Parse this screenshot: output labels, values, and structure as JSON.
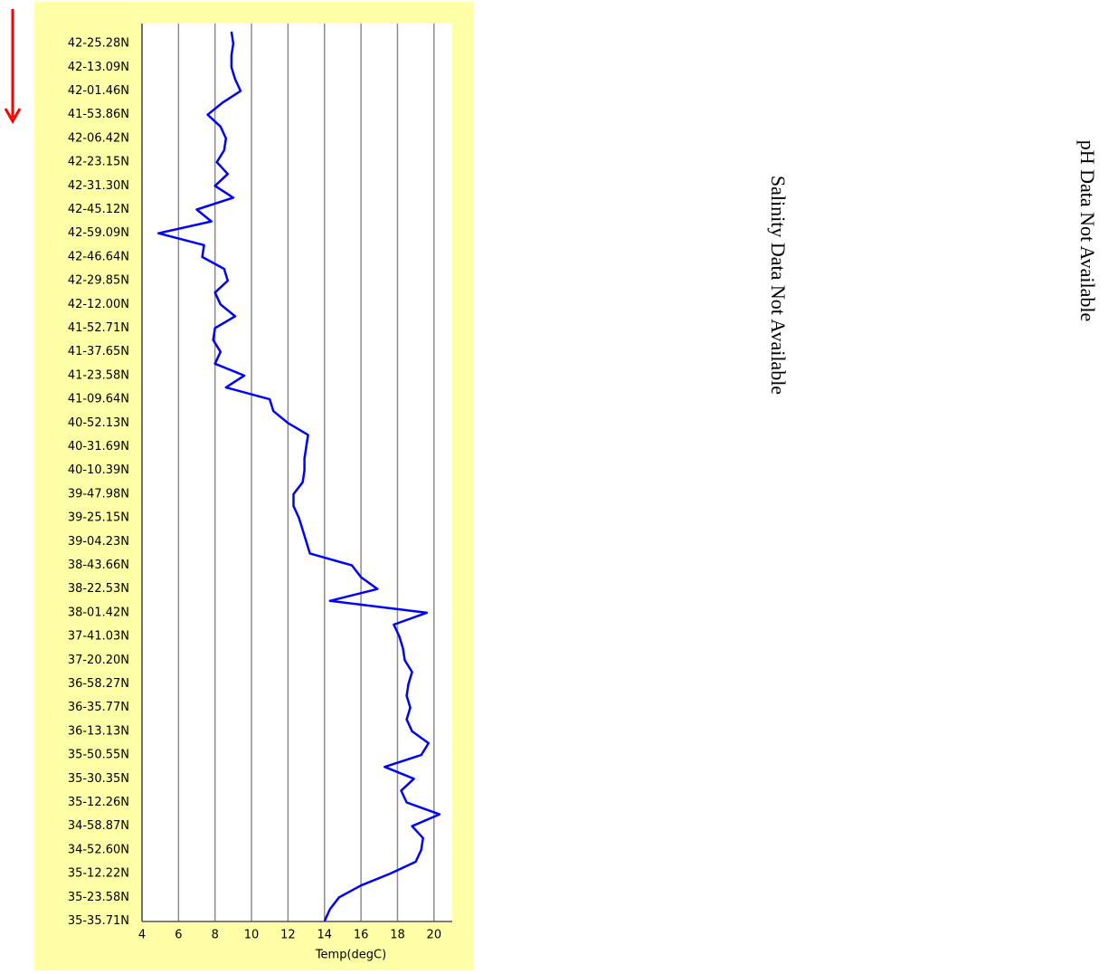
{
  "chart_data": {
    "type": "line",
    "orientation": "horizontal",
    "xlabel": "Temp(degC)",
    "xlim": [
      4,
      21
    ],
    "xticks": [
      4,
      6,
      8,
      10,
      12,
      14,
      16,
      18,
      20
    ],
    "grid": true,
    "color": "#0000ff",
    "categories": [
      null,
      "42-25.28N",
      null,
      "42-13.09N",
      null,
      "42-01.46N",
      null,
      "41-53.86N",
      null,
      "42-06.42N",
      null,
      "42-23.15N",
      null,
      "42-31.30N",
      null,
      "42-45.12N",
      null,
      "42-59.09N",
      null,
      "42-46.64N",
      null,
      "42-29.85N",
      null,
      "42-12.00N",
      null,
      "41-52.71N",
      null,
      "41-37.65N",
      null,
      "41-23.58N",
      null,
      "41-09.64N",
      null,
      "40-52.13N",
      null,
      "40-31.69N",
      null,
      "40-10.39N",
      null,
      "39-47.98N",
      null,
      "39-25.15N",
      null,
      "39-04.23N",
      null,
      "38-43.66N",
      null,
      "38-22.53N",
      null,
      "38-01.42N",
      null,
      "37-41.03N",
      null,
      "37-20.20N",
      null,
      "36-58.27N",
      null,
      "36-35.77N",
      null,
      "36-13.13N",
      null,
      "35-50.55N",
      null,
      "35-30.35N",
      null,
      "35-12.26N",
      null,
      "34-58.87N",
      null,
      "34-52.60N",
      null,
      "35-12.22N",
      null,
      "35-23.58N",
      null,
      "35-35.71N"
    ],
    "values": [
      8.9,
      9.0,
      8.9,
      8.9,
      9.1,
      9.4,
      8.4,
      7.6,
      8.3,
      8.6,
      8.5,
      8.1,
      8.7,
      8.0,
      9.0,
      7.0,
      7.8,
      4.9,
      7.4,
      7.3,
      8.5,
      8.7,
      8.0,
      8.3,
      9.1,
      8.0,
      7.9,
      8.3,
      8.0,
      9.6,
      8.6,
      11.0,
      11.2,
      12.0,
      13.1,
      13.0,
      12.9,
      12.9,
      12.8,
      12.3,
      12.3,
      12.6,
      12.8,
      13.0,
      13.2,
      15.5,
      16.0,
      16.9,
      14.3,
      19.6,
      17.8,
      18.1,
      18.3,
      18.4,
      18.8,
      18.6,
      18.5,
      18.7,
      18.5,
      18.8,
      19.7,
      19.3,
      17.3,
      18.9,
      18.2,
      18.5,
      20.3,
      18.8,
      19.4,
      19.3,
      19.0,
      17.6,
      16.0,
      14.8,
      14.3,
      14.0
    ],
    "annotations": [
      "Salinity Data Not Available",
      "pH Data Not Available"
    ]
  }
}
